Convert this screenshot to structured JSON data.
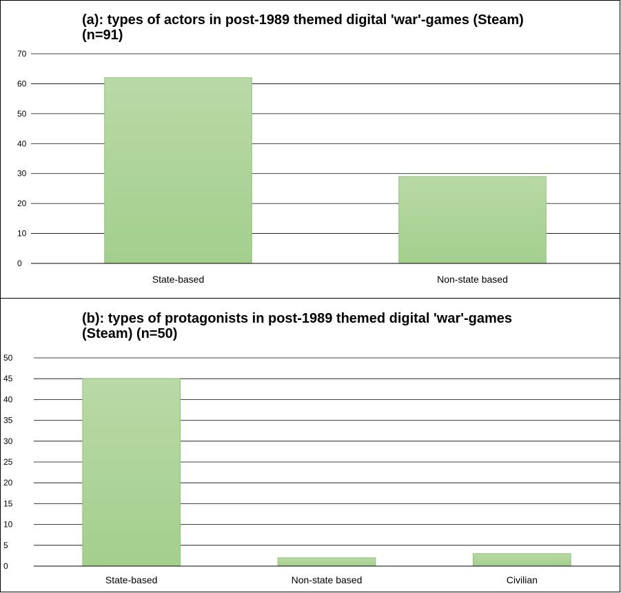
{
  "chart_data": [
    {
      "type": "bar",
      "title": "(a): types of actors in post-1989 themed digital 'war'-games (Steam) (n=91)",
      "categories": [
        "State-based",
        "Non-state based"
      ],
      "values": [
        62,
        29
      ],
      "ylim": [
        0,
        70
      ],
      "yticks": [
        0,
        10,
        20,
        30,
        40,
        50,
        60,
        70
      ],
      "grid": true,
      "bar_color": "#a3cf8d"
    },
    {
      "type": "bar",
      "title": "(b): types of protagonists in post-1989 themed digital 'war'-games (Steam) (n=50)",
      "categories": [
        "State-based",
        "Non-state based",
        "Civilian"
      ],
      "values": [
        45,
        2,
        3
      ],
      "ylim": [
        0,
        50
      ],
      "yticks": [
        0,
        5,
        10,
        15,
        20,
        25,
        30,
        35,
        40,
        45,
        50
      ],
      "grid": true,
      "bar_color": "#a3cf8d"
    }
  ]
}
